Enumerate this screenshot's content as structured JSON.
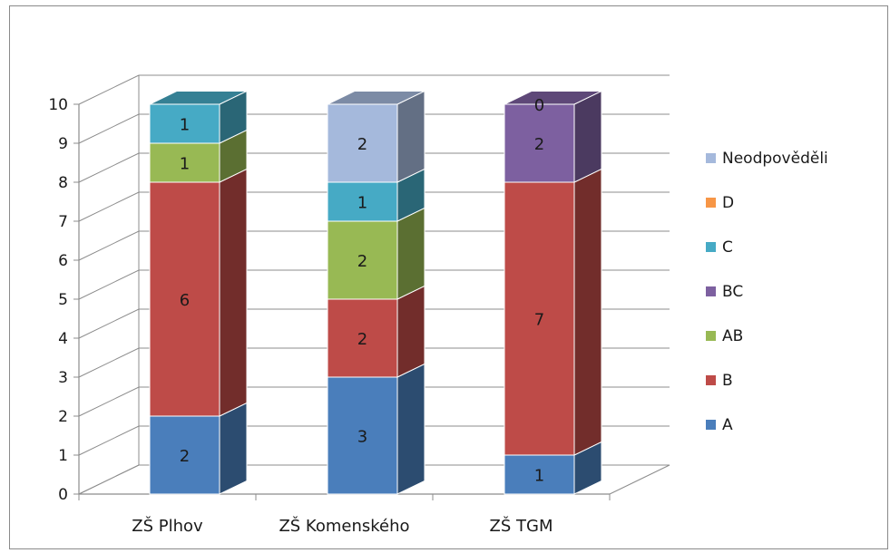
{
  "chart_data": {
    "type": "bar",
    "stacked": true,
    "three_d": true,
    "categories": [
      "ZŠ Plhov",
      "ZŠ Komenského",
      "ZŠ TGM"
    ],
    "series": [
      {
        "name": "A",
        "values": [
          2,
          3,
          1
        ],
        "color": "#4a7ebb"
      },
      {
        "name": "B",
        "values": [
          6,
          2,
          7
        ],
        "color": "#be4b48"
      },
      {
        "name": "AB",
        "values": [
          1,
          2,
          null
        ],
        "color": "#98b954"
      },
      {
        "name": "BC",
        "values": [
          null,
          null,
          2
        ],
        "color": "#7d60a0"
      },
      {
        "name": "C",
        "values": [
          1,
          1,
          null
        ],
        "color": "#46aac5"
      },
      {
        "name": "D",
        "values": [
          null,
          null,
          0
        ],
        "color": "#f79646"
      },
      {
        "name": "Neodpověděli",
        "values": [
          null,
          2,
          null
        ],
        "color": "#a5b9dc"
      }
    ],
    "title": "",
    "xlabel": "",
    "ylabel": "",
    "ylim": [
      0,
      10
    ],
    "yticks": [
      "0",
      "1",
      "2",
      "3",
      "4",
      "5",
      "6",
      "7",
      "8",
      "9",
      "10"
    ],
    "grid": true,
    "legend_position": "right"
  }
}
